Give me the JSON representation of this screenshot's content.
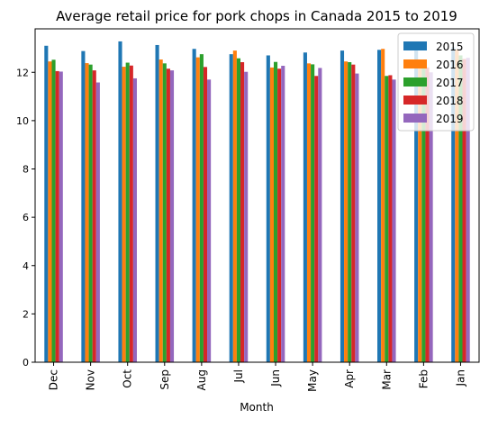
{
  "chart_data": {
    "type": "bar",
    "title": "Average retail price for pork chops in Canada 2015 to 2019",
    "xlabel": "Month",
    "ylabel": "",
    "categories": [
      "Dec",
      "Nov",
      "Oct",
      "Sep",
      "Aug",
      "Jul",
      "Jun",
      "May",
      "Apr",
      "Mar",
      "Feb",
      "Jan"
    ],
    "ylim": [
      0,
      13.8
    ],
    "yticks": [
      0,
      2,
      4,
      6,
      8,
      10,
      12
    ],
    "grid": false,
    "legend_position": "top-right",
    "series": [
      {
        "name": "2015",
        "color": "#1f77b4",
        "values": [
          13.1,
          12.88,
          13.28,
          13.13,
          12.97,
          12.75,
          12.7,
          12.82,
          12.9,
          12.93,
          12.9,
          13.03
        ]
      },
      {
        "name": "2016",
        "color": "#ff7f0e",
        "values": [
          12.45,
          12.38,
          12.23,
          12.53,
          12.62,
          12.9,
          12.2,
          12.37,
          12.45,
          12.97,
          12.5,
          12.95
        ]
      },
      {
        "name": "2017",
        "color": "#2ca02c",
        "values": [
          12.52,
          12.32,
          12.4,
          12.37,
          12.75,
          12.58,
          12.43,
          12.33,
          12.42,
          11.85,
          12.4,
          12.7
        ]
      },
      {
        "name": "2018",
        "color": "#d62728",
        "values": [
          12.05,
          12.08,
          12.28,
          12.15,
          12.22,
          12.42,
          12.15,
          11.85,
          12.32,
          11.88,
          12.2,
          12.55
        ]
      },
      {
        "name": "2019",
        "color": "#9467bd",
        "values": [
          12.03,
          11.58,
          11.75,
          12.08,
          11.7,
          12.02,
          12.27,
          12.18,
          11.95,
          11.7,
          12.0,
          12.6
        ]
      }
    ]
  }
}
